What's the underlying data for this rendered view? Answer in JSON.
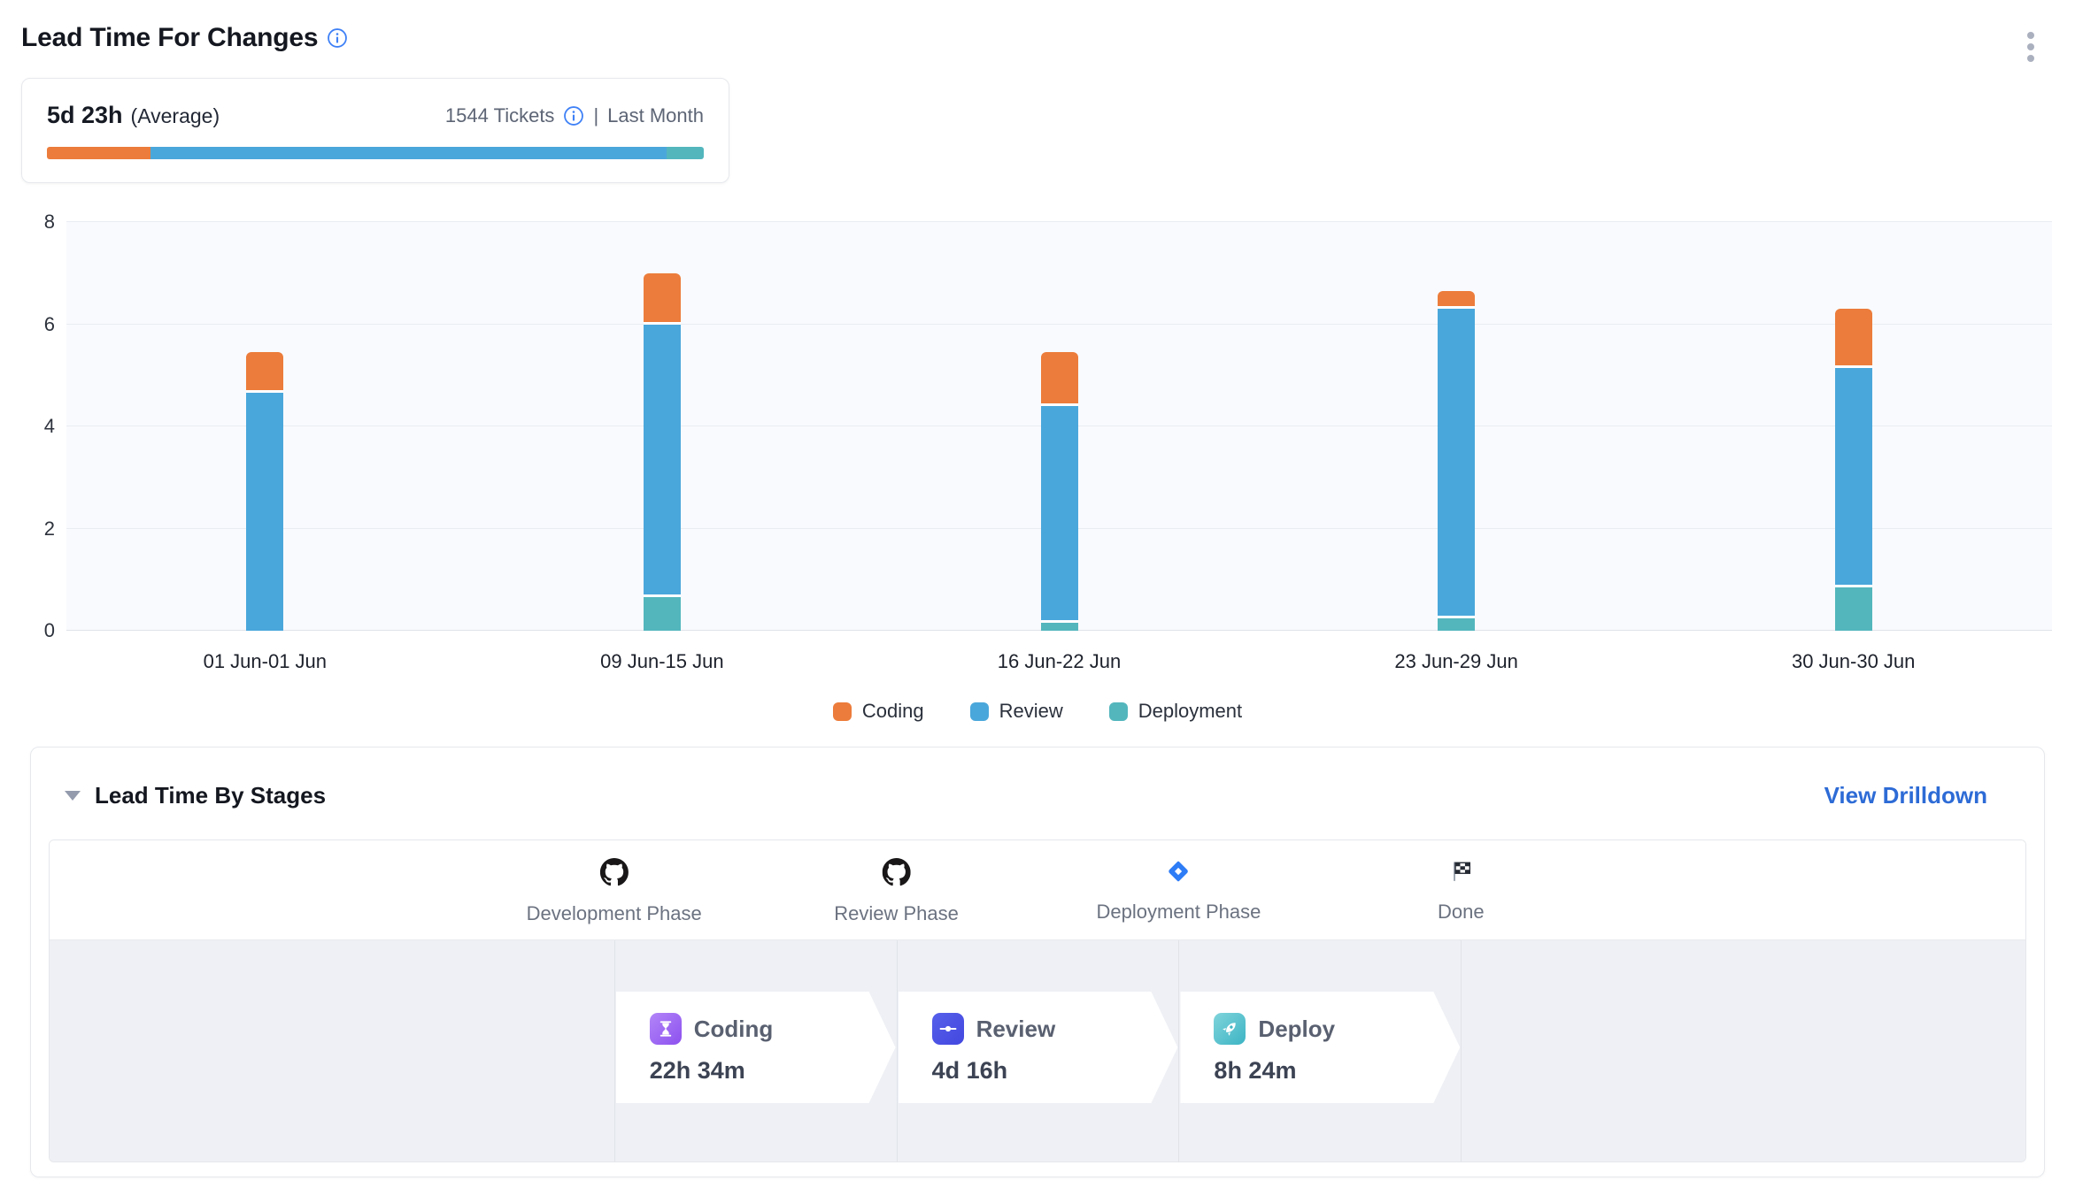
{
  "header": {
    "title": "Lead Time For Changes",
    "menu_icon": "kebab-vertical",
    "info_icon_color": "#3e80f6"
  },
  "summary": {
    "value": "5d 23h",
    "value_suffix": "(Average)",
    "tickets": "1544 Tickets",
    "separator": "|",
    "period": "Last Month",
    "bar_segments": [
      {
        "name": "Coding",
        "color": "#ec7c3b",
        "percent": 15.8
      },
      {
        "name": "Review",
        "color": "#4aa7db",
        "percent": 78.5
      },
      {
        "name": "Deployment",
        "color": "#53b6bd",
        "percent": 5.7
      }
    ]
  },
  "chart_data": {
    "type": "bar",
    "stacked": true,
    "title": "Lead Time For Changes",
    "xlabel": "",
    "ylabel": "",
    "ylim": [
      0,
      8
    ],
    "yticks": [
      0,
      2,
      4,
      6,
      8
    ],
    "grid": true,
    "legend_position": "bottom",
    "categories": [
      "01 Jun-01 Jun",
      "09 Jun-15 Jun",
      "16 Jun-22 Jun",
      "23 Jun-29 Jun",
      "30 Jun-30 Jun"
    ],
    "stack_order": [
      "Deployment",
      "Review",
      "Coding"
    ],
    "series": [
      {
        "name": "Coding",
        "color": "#ec7c3b",
        "values": [
          0.8,
          1.0,
          1.05,
          0.35,
          1.15
        ]
      },
      {
        "name": "Review",
        "color": "#4aa7db",
        "values": [
          4.65,
          5.35,
          4.25,
          6.05,
          4.3
        ]
      },
      {
        "name": "Deployment",
        "color": "#53b6bd",
        "values": [
          0,
          0.65,
          0.15,
          0.25,
          0.85
        ]
      }
    ]
  },
  "stages_panel": {
    "title": "Lead Time By Stages",
    "drilldown_label": "View Drilldown",
    "phases": [
      {
        "label": "Development Phase",
        "icon": "github"
      },
      {
        "label": "Review Phase",
        "icon": "github"
      },
      {
        "label": "Deployment Phase",
        "icon": "jira-diamond"
      },
      {
        "label": "Done",
        "icon": "checkered-flag"
      }
    ],
    "stages": [
      {
        "label": "Coding",
        "value": "22h 34m",
        "icon": "hourglass",
        "icon_gradient": [
          "#b286f8",
          "#8d50ef"
        ]
      },
      {
        "label": "Review",
        "value": "4d 16h",
        "icon": "git-commit",
        "icon_gradient": [
          "#5660ea",
          "#4347df"
        ]
      },
      {
        "label": "Deploy",
        "value": "8h 24m",
        "icon": "rocket",
        "icon_gradient": [
          "#7fd4db",
          "#3db4c4"
        ]
      }
    ]
  }
}
